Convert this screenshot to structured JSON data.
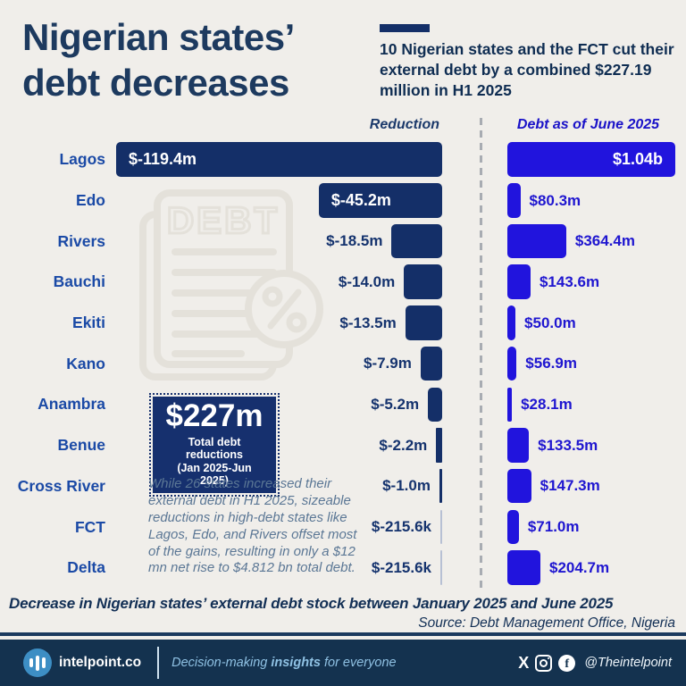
{
  "header": {
    "title_line1": "Nigerian states’",
    "title_line2": "debt decreases",
    "subtitle": "10 Nigerian states and the FCT cut their external debt by a combined $227.19 million in H1 2025"
  },
  "chart_data": {
    "type": "bar",
    "orientation": "horizontal",
    "grid": false,
    "legend_position": "column-headers",
    "categories": [
      "Lagos",
      "Edo",
      "Rivers",
      "Bauchi",
      "Ekiti",
      "Kano",
      "Anambra",
      "Benue",
      "Cross River",
      "FCT",
      "Delta"
    ],
    "series": [
      {
        "name": "Reduction",
        "bar_alignment": "right",
        "bar_color": "#142f68",
        "axis_max_million_usd": 119.4,
        "values_million_usd": [
          -119.4,
          -45.2,
          -18.5,
          -14.0,
          -13.5,
          -7.9,
          -5.2,
          -2.2,
          -1.0,
          -0.2156,
          -0.2156
        ],
        "labels": [
          "$-119.4m",
          "$-45.2m",
          "$-18.5m",
          "$-14.0m",
          "$-13.5m",
          "$-7.9m",
          "$-5.2m",
          "$-2.2m",
          "$-1.0m",
          "$-215.6k",
          "$-215.6k"
        ]
      },
      {
        "name": "Debt as of June 2025",
        "bar_alignment": "left",
        "bar_color": "#2114dd",
        "axis_max_million_usd": 1040,
        "values_million_usd": [
          1040,
          80.3,
          364.4,
          143.6,
          50.0,
          56.9,
          28.1,
          133.5,
          147.3,
          71.0,
          204.7
        ],
        "labels": [
          "$1.04b",
          "$80.3m",
          "$364.4m",
          "$143.6m",
          "$50.0m",
          "$56.9m",
          "$28.1m",
          "$133.5m",
          "$147.3m",
          "$71.0m",
          "$204.7m"
        ]
      }
    ]
  },
  "annotation": {
    "value": "$227m",
    "line1": "Total debt reductions",
    "line2": "(Jan 2025-Jun 2025)"
  },
  "note": "While 26 states increased their external debt in H1 2025, sizeable reductions in high-debt states like Lagos, Edo, and Rivers offset most of the gains, resulting in only a $12 mn net rise to $4.812 bn total debt.",
  "watermark_text": "DEBT",
  "caption": {
    "text": "Decrease in Nigerian states’ external debt stock between January 2025 and June 2025",
    "source": "Source: Debt Management Office, Nigeria"
  },
  "footer": {
    "brand": "intelpoint.co",
    "tagline_pre": "Decision-making ",
    "tagline_bold": "insights",
    "tagline_post": " for everyone",
    "handle": "@Theintelpoint"
  },
  "colors": {
    "background": "#f0eeea",
    "title_navy": "#1d3a5f",
    "reduction_bar": "#142f68",
    "debt_bar": "#2114dd",
    "state_label": "#1b4aa6",
    "debt_label": "#1f16d0",
    "footer_bg": "#14324f",
    "logo_blue": "#3d8ec4",
    "note_text": "#5b7795",
    "tiny_bar": "#b7c0d4"
  }
}
